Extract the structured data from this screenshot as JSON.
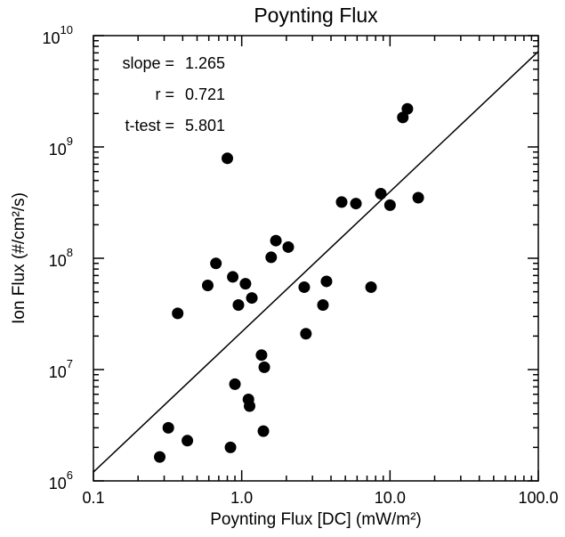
{
  "chart_data": {
    "type": "scatter",
    "title": "Poynting Flux",
    "x_label": "Poynting Flux [DC] (mW/m²)",
    "y_label": "Ion Flux (#/cm²/s)",
    "x_log": true,
    "y_log": true,
    "minor_ticks": true,
    "xlim": [
      0.1,
      100
    ],
    "ylim": [
      1000000,
      10000000000
    ],
    "xticks": [
      0.1,
      {
        "value": 1,
        "label": "1.0"
      },
      {
        "value": 10,
        "label": "10.0"
      },
      {
        "value": 100,
        "label": "100.0"
      }
    ],
    "yticks": [
      {
        "value": 1000000,
        "label": "10",
        "exponent": "6"
      },
      {
        "value": 10000000,
        "label": "10",
        "exponent": "7"
      },
      {
        "value": 100000000,
        "label": "10",
        "exponent": "8"
      },
      {
        "value": 1000000000,
        "label": "10",
        "exponent": "9"
      },
      {
        "value": 10000000000,
        "label": "10",
        "exponent": "10"
      }
    ],
    "color": "#000000",
    "x": [
      0.28,
      0.32,
      0.43,
      0.84,
      1.4,
      0.37,
      0.59,
      0.67,
      0.87,
      0.95,
      1.06,
      1.17,
      0.8,
      0.9,
      1.11,
      1.13,
      1.36,
      1.42,
      1.58,
      1.7,
      2.06,
      2.64,
      2.71,
      3.53,
      3.73,
      4.72,
      5.89,
      7.45,
      8.67,
      10.0,
      12.2,
      13.1,
      15.5
    ],
    "values": [
      1640000,
      3000000,
      2300000,
      2000000,
      2800000,
      32000000,
      57000000,
      90000000,
      68000000,
      38000000,
      59000000,
      44000000,
      790000000,
      7400000,
      5400000,
      4700000,
      13500000,
      10500000,
      102000000,
      144000000,
      126000000,
      55000000,
      21000000,
      38000000,
      62000000,
      320000000,
      310000000,
      55000000,
      380000000,
      300000000,
      1840000000,
      2200000000,
      350000000
    ],
    "fit_line": {
      "x": [
        0.1,
        100
      ],
      "y": [
        1200000,
        7200000000
      ]
    },
    "annotations": [
      {
        "label": "slope =",
        "value": 1.265
      },
      {
        "label": "r =",
        "value": 0.721
      },
      {
        "label": "t-test =",
        "value": 5.801
      }
    ]
  }
}
